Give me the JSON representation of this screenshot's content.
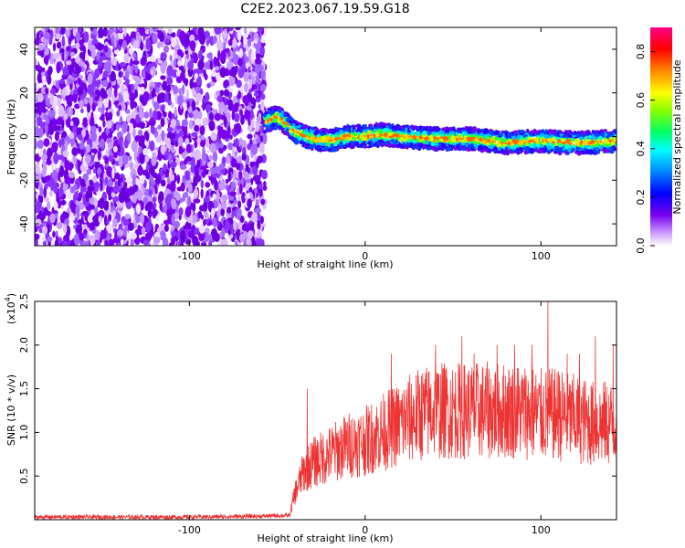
{
  "title": "C2E2.2023.067.19.59.G18",
  "chart_data": [
    {
      "type": "heatmap",
      "xlabel": "Height of straight line (km)",
      "ylabel": "Frequency (Hz)",
      "xlim": [
        -188,
        143
      ],
      "ylim": [
        -50,
        50
      ],
      "xticks": [
        -100,
        0,
        100
      ],
      "yticks": [
        -40,
        -20,
        0,
        20,
        40
      ],
      "noise_region_x": [
        -188,
        -57
      ],
      "signal_track": {
        "x": [
          -57,
          -50,
          -45,
          -40,
          -30,
          -20,
          -10,
          0,
          10,
          20,
          40,
          60,
          80,
          100,
          120,
          143
        ],
        "freq_hz": [
          7,
          9,
          6,
          2,
          -1,
          -2,
          0,
          0,
          1,
          0,
          -1,
          -1,
          -3,
          -2,
          -3,
          -2
        ]
      },
      "colorbar": {
        "label": "Normalized spectral amplitude",
        "range": [
          0.0,
          0.9
        ],
        "ticks": [
          "0.0",
          "0.2",
          "0.4",
          "0.6",
          "0.8"
        ]
      }
    },
    {
      "type": "line",
      "xlabel": "Height of straight line (km)",
      "ylabel": "SNR (10 * v/v)",
      "scale_label": "(x10",
      "scale_exp": "4",
      "xlim": [
        -188,
        143
      ],
      "ylim": [
        0,
        25000
      ],
      "xticks": [
        -100,
        0,
        100
      ],
      "yticks": [
        5000,
        10000,
        15000,
        20000,
        25000
      ],
      "ytick_labels": [
        "0.5",
        "1.0",
        "1.5",
        "2.0",
        "2.5"
      ],
      "color": "#ee3333",
      "series": [
        {
          "x": [
            -188,
            -150,
            -100,
            -60,
            -43,
            -40,
            -35,
            -30,
            -25,
            -20,
            -10,
            0,
            10,
            20,
            30,
            40,
            50,
            60,
            70,
            80,
            90,
            100,
            110,
            120,
            130,
            143
          ],
          "y": [
            300,
            300,
            300,
            400,
            500,
            3000,
            5500,
            6500,
            7000,
            7500,
            8500,
            9000,
            10000,
            11000,
            12000,
            12500,
            12500,
            12500,
            12500,
            12500,
            12500,
            12000,
            12000,
            11500,
            11000,
            11000
          ]
        }
      ],
      "peaks": {
        "x": [
          -33,
          15,
          40,
          55,
          62,
          75,
          85,
          95,
          104,
          110,
          115,
          122,
          131,
          141
        ],
        "y": [
          15000,
          19000,
          20000,
          21000,
          19000,
          20000,
          20000,
          20000,
          25000,
          17000,
          19000,
          19000,
          21000,
          20000
        ]
      }
    }
  ]
}
